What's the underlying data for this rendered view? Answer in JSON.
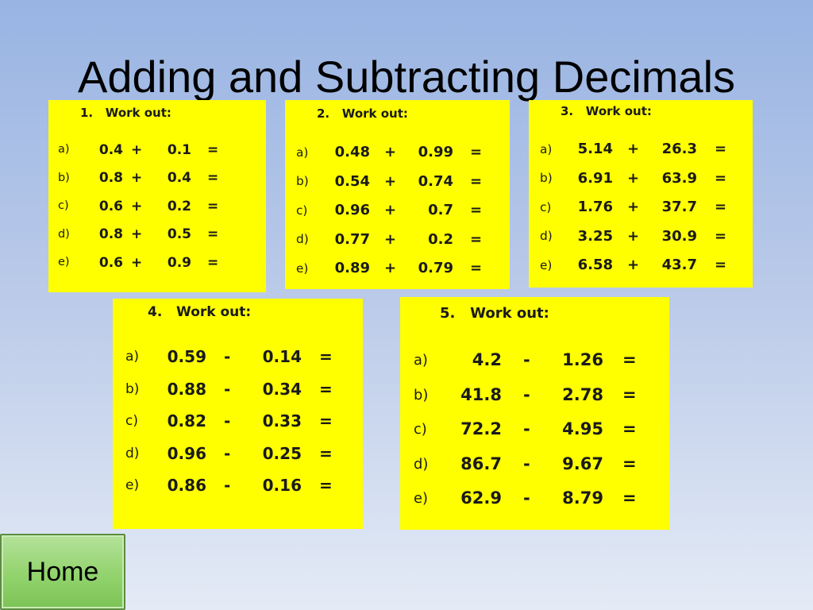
{
  "title": "Adding and Subtracting Decimals",
  "home_label": "Home",
  "accent_color": "#ffff00",
  "boxes": [
    {
      "heading": "1.   Work out:",
      "questions": [
        {
          "letter": "a)",
          "left": "0.4",
          "op": "+",
          "right": "0.1",
          "eq": "="
        },
        {
          "letter": "b)",
          "left": "0.8",
          "op": "+",
          "right": "0.4",
          "eq": "="
        },
        {
          "letter": "c)",
          "left": "0.6",
          "op": "+",
          "right": "0.2",
          "eq": "="
        },
        {
          "letter": "d)",
          "left": "0.8",
          "op": "+",
          "right": "0.5",
          "eq": "="
        },
        {
          "letter": "e)",
          "left": "0.6",
          "op": "+",
          "right": "0.9",
          "eq": "="
        }
      ]
    },
    {
      "heading": "2.   Work out:",
      "questions": [
        {
          "letter": "a)",
          "left": "0.48",
          "op": "+",
          "right": "0.99",
          "eq": "="
        },
        {
          "letter": "b)",
          "left": "0.54",
          "op": "+",
          "right": "0.74",
          "eq": "="
        },
        {
          "letter": "c)",
          "left": "0.96",
          "op": "+",
          "right": "0.7",
          "eq": "="
        },
        {
          "letter": "d)",
          "left": "0.77",
          "op": "+",
          "right": "0.2",
          "eq": "="
        },
        {
          "letter": "e)",
          "left": "0.89",
          "op": "+",
          "right": "0.79",
          "eq": "="
        }
      ]
    },
    {
      "heading": "3.   Work out:",
      "questions": [
        {
          "letter": "a)",
          "left": "5.14",
          "op": "+",
          "right": "26.3",
          "eq": "="
        },
        {
          "letter": "b)",
          "left": "6.91",
          "op": "+",
          "right": "63.9",
          "eq": "="
        },
        {
          "letter": "c)",
          "left": "1.76",
          "op": "+",
          "right": "37.7",
          "eq": "="
        },
        {
          "letter": "d)",
          "left": "3.25",
          "op": "+",
          "right": "30.9",
          "eq": "="
        },
        {
          "letter": "e)",
          "left": "6.58",
          "op": "+",
          "right": "43.7",
          "eq": "="
        }
      ]
    },
    {
      "heading": "4.   Work out:",
      "questions": [
        {
          "letter": "a)",
          "left": "0.59",
          "op": "-",
          "right": "0.14",
          "eq": "="
        },
        {
          "letter": "b)",
          "left": "0.88",
          "op": "-",
          "right": "0.34",
          "eq": "="
        },
        {
          "letter": "c)",
          "left": "0.82",
          "op": "-",
          "right": "0.33",
          "eq": "="
        },
        {
          "letter": "d)",
          "left": "0.96",
          "op": "-",
          "right": "0.25",
          "eq": "="
        },
        {
          "letter": "e)",
          "left": "0.86",
          "op": "-",
          "right": "0.16",
          "eq": "="
        }
      ]
    },
    {
      "heading": "5.   Work out:",
      "questions": [
        {
          "letter": "a)",
          "left": "4.2",
          "op": "-",
          "right": "1.26",
          "eq": "="
        },
        {
          "letter": "b)",
          "left": "41.8",
          "op": "-",
          "right": "2.78",
          "eq": "="
        },
        {
          "letter": "c)",
          "left": "72.2",
          "op": "-",
          "right": "4.95",
          "eq": "="
        },
        {
          "letter": "d)",
          "left": "86.7",
          "op": "-",
          "right": "9.67",
          "eq": "="
        },
        {
          "letter": "e)",
          "left": "62.9",
          "op": "-",
          "right": "8.79",
          "eq": "="
        }
      ]
    }
  ]
}
